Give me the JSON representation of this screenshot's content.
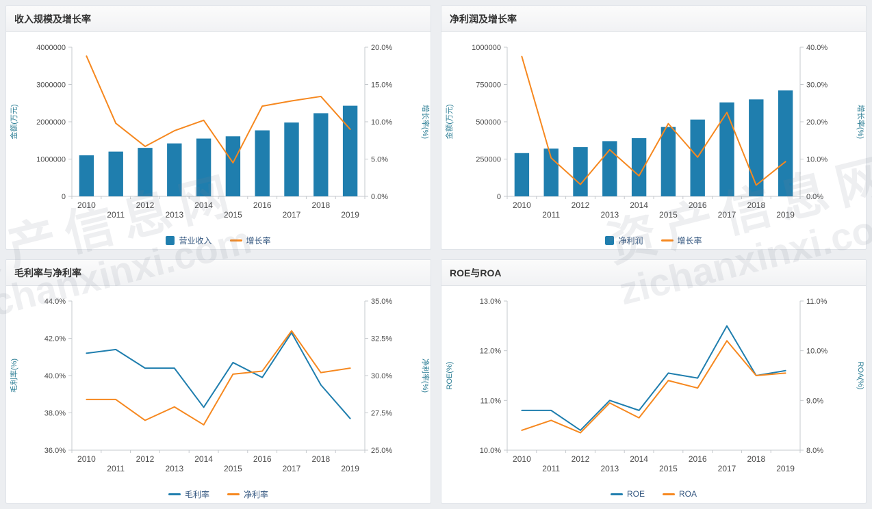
{
  "watermark": {
    "text_cn": "资产信息网",
    "text_en": "zichanxinxi.com"
  },
  "theme": {
    "axis_line_color": "#c4c8cc",
    "tick_label_color": "#4a4a4a",
    "axis_name_color": "#2e7f96",
    "legend_text_color": "#33567f",
    "bar_color": "#1f7eae",
    "line_color": "#f6881f"
  },
  "chart_data": [
    {
      "type": "bar",
      "title": "收入规模及增长率",
      "categories": [
        2010,
        2011,
        2012,
        2013,
        2014,
        2015,
        2016,
        2017,
        2018,
        2019
      ],
      "left_axis": {
        "name": "金额(万元)",
        "min": 0,
        "max": 4000000,
        "tick_labels": [
          "0",
          "1000000",
          "2000000",
          "3000000",
          "4000000"
        ]
      },
      "right_axis": {
        "name": "增长率(%)",
        "min": 0,
        "max": 20,
        "tick_labels": [
          "0.0%",
          "5.0%",
          "10.0%",
          "15.0%",
          "20.0%"
        ]
      },
      "series": [
        {
          "name": "营业收入",
          "type": "bar",
          "axis": "left",
          "color": "#1f7eae",
          "values": [
            1100000,
            1200000,
            1300000,
            1420000,
            1550000,
            1610000,
            1770000,
            1980000,
            2230000,
            2430000
          ]
        },
        {
          "name": "增长率",
          "type": "line",
          "axis": "right",
          "color": "#f6881f",
          "values": [
            18.8,
            9.8,
            6.7,
            8.8,
            10.2,
            4.5,
            12.1,
            12.8,
            13.4,
            9.0
          ]
        }
      ]
    },
    {
      "type": "bar",
      "title": "净利润及增长率",
      "categories": [
        2010,
        2011,
        2012,
        2013,
        2014,
        2015,
        2016,
        2017,
        2018,
        2019
      ],
      "left_axis": {
        "name": "金额(万元)",
        "min": 0,
        "max": 1000000,
        "tick_labels": [
          "0",
          "250000",
          "500000",
          "750000",
          "1000000"
        ]
      },
      "right_axis": {
        "name": "增长率(%)",
        "min": 0,
        "max": 40,
        "tick_labels": [
          "0.0%",
          "10.0%",
          "20.0%",
          "30.0%",
          "40.0%"
        ]
      },
      "series": [
        {
          "name": "净利润",
          "type": "bar",
          "axis": "left",
          "color": "#1f7eae",
          "values": [
            290000,
            320000,
            330000,
            370000,
            390000,
            465000,
            515000,
            630000,
            650000,
            710000
          ]
        },
        {
          "name": "增长率",
          "type": "line",
          "axis": "right",
          "color": "#f6881f",
          "values": [
            37.5,
            10.3,
            3.2,
            12.5,
            5.5,
            19.5,
            10.5,
            22.5,
            3.0,
            9.3
          ]
        }
      ]
    },
    {
      "type": "line",
      "title": "毛利率与净利率",
      "categories": [
        2010,
        2011,
        2012,
        2013,
        2014,
        2015,
        2016,
        2017,
        2018,
        2019
      ],
      "left_axis": {
        "name": "毛利率(%)",
        "min": 36,
        "max": 44,
        "tick_labels": [
          "36.0%",
          "38.0%",
          "40.0%",
          "42.0%",
          "44.0%"
        ]
      },
      "right_axis": {
        "name": "净利率(%)",
        "min": 25,
        "max": 35,
        "tick_labels": [
          "25.0%",
          "27.5%",
          "30.0%",
          "32.5%",
          "35.0%"
        ]
      },
      "series": [
        {
          "name": "毛利率",
          "type": "line",
          "axis": "left",
          "color": "#1f7eae",
          "values": [
            41.2,
            41.4,
            40.4,
            40.4,
            38.3,
            40.7,
            39.9,
            42.3,
            39.5,
            37.7
          ]
        },
        {
          "name": "净利率",
          "type": "line",
          "axis": "right",
          "color": "#f6881f",
          "values": [
            28.4,
            28.4,
            27.0,
            27.9,
            26.7,
            30.1,
            30.3,
            33.0,
            30.2,
            30.5
          ]
        }
      ]
    },
    {
      "type": "line",
      "title": "ROE与ROA",
      "categories": [
        2010,
        2011,
        2012,
        2013,
        2014,
        2015,
        2016,
        2017,
        2018,
        2019
      ],
      "left_axis": {
        "name": "ROE(%)",
        "min": 10,
        "max": 13,
        "tick_labels": [
          "10.0%",
          "11.0%",
          "12.0%",
          "13.0%"
        ]
      },
      "right_axis": {
        "name": "ROA(%)",
        "min": 8,
        "max": 11,
        "tick_labels": [
          "8.0%",
          "9.0%",
          "10.0%",
          "11.0%"
        ]
      },
      "series": [
        {
          "name": "ROE",
          "type": "line",
          "axis": "left",
          "color": "#1f7eae",
          "values": [
            10.8,
            10.8,
            10.4,
            11.0,
            10.8,
            11.55,
            11.45,
            12.5,
            11.5,
            11.6
          ]
        },
        {
          "name": "ROA",
          "type": "line",
          "axis": "right",
          "color": "#f6881f",
          "values": [
            8.4,
            8.6,
            8.35,
            8.95,
            8.65,
            9.4,
            9.25,
            10.2,
            9.5,
            9.55
          ]
        }
      ]
    }
  ]
}
